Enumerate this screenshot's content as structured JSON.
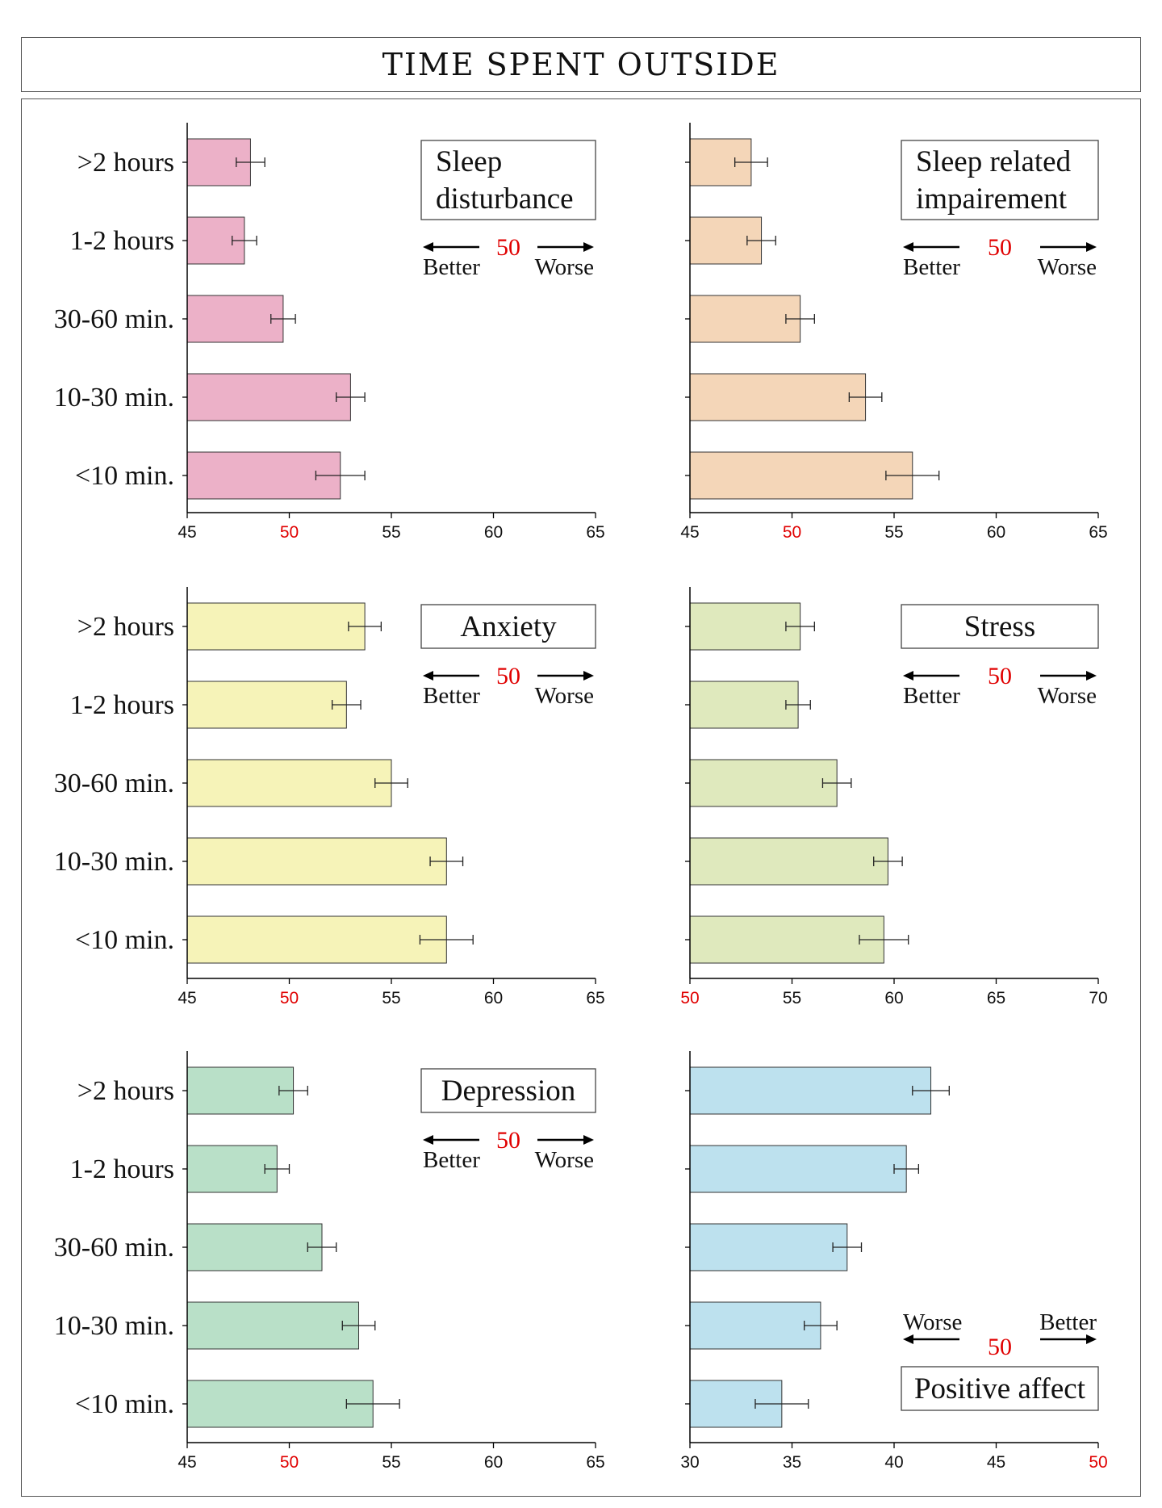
{
  "page_title": "TIME SPENT OUTSIDE",
  "colors": {
    "reference": "#e00000",
    "axis": "#000000"
  },
  "chart_data": [
    {
      "type": "bar",
      "orientation": "horizontal",
      "title": [
        "Sleep",
        "disturbance"
      ],
      "categories": [
        ">2 hours",
        "1-2 hours",
        "30-60 min.",
        "10-30 min.",
        "<10 min."
      ],
      "values": [
        48.1,
        47.8,
        49.7,
        53.0,
        52.5
      ],
      "errors": [
        0.7,
        0.6,
        0.6,
        0.7,
        1.2
      ],
      "xlim": [
        45,
        65
      ],
      "xticks": [
        "45",
        "50",
        "55",
        "60",
        "65"
      ],
      "reference": "50",
      "direction": {
        "left": "Better",
        "right": "Worse",
        "center": "50",
        "position": "top"
      },
      "color": "#ecb1c8",
      "show_categories": true
    },
    {
      "type": "bar",
      "orientation": "horizontal",
      "title": [
        "Sleep related",
        "impairement"
      ],
      "categories": [
        ">2 hours",
        "1-2 hours",
        "30-60 min.",
        "10-30 min.",
        "<10 min."
      ],
      "values": [
        48.0,
        48.5,
        50.4,
        53.6,
        55.9
      ],
      "errors": [
        0.8,
        0.7,
        0.7,
        0.8,
        1.3
      ],
      "xlim": [
        45,
        65
      ],
      "xticks": [
        "45",
        "50",
        "55",
        "60",
        "65"
      ],
      "reference": "50",
      "direction": {
        "left": "Better",
        "right": "Worse",
        "center": "50",
        "position": "top"
      },
      "color": "#f4d6b8",
      "show_categories": false
    },
    {
      "type": "bar",
      "orientation": "horizontal",
      "title": [
        "Anxiety"
      ],
      "categories": [
        ">2 hours",
        "1-2 hours",
        "30-60 min.",
        "10-30 min.",
        "<10 min."
      ],
      "values": [
        53.7,
        52.8,
        55.0,
        57.7,
        57.7
      ],
      "errors": [
        0.8,
        0.7,
        0.8,
        0.8,
        1.3
      ],
      "xlim": [
        45,
        65
      ],
      "xticks": [
        "45",
        "50",
        "55",
        "60",
        "65"
      ],
      "reference": "50",
      "direction": {
        "left": "Better",
        "right": "Worse",
        "center": "50",
        "position": "top"
      },
      "color": "#f6f3b8",
      "show_categories": true
    },
    {
      "type": "bar",
      "orientation": "horizontal",
      "title": [
        "Stress"
      ],
      "categories": [
        ">2 hours",
        "1-2 hours",
        "30-60 min.",
        "10-30 min.",
        "<10 min."
      ],
      "values": [
        55.4,
        55.3,
        57.2,
        59.7,
        59.5
      ],
      "errors": [
        0.7,
        0.6,
        0.7,
        0.7,
        1.2
      ],
      "xlim": [
        50,
        70
      ],
      "xticks": [
        "50",
        "55",
        "60",
        "65",
        "70"
      ],
      "reference": "50",
      "direction": {
        "left": "Better",
        "right": "Worse",
        "center": "50",
        "position": "top"
      },
      "color": "#dfe9bd",
      "show_categories": false
    },
    {
      "type": "bar",
      "orientation": "horizontal",
      "title": [
        "Depression"
      ],
      "categories": [
        ">2 hours",
        "1-2 hours",
        "30-60 min.",
        "10-30 min.",
        "<10 min."
      ],
      "values": [
        50.2,
        49.4,
        51.6,
        53.4,
        54.1
      ],
      "errors": [
        0.7,
        0.6,
        0.7,
        0.8,
        1.3
      ],
      "xlim": [
        45,
        65
      ],
      "xticks": [
        "45",
        "50",
        "55",
        "60",
        "65"
      ],
      "reference": "50",
      "direction": {
        "left": "Better",
        "right": "Worse",
        "center": "50",
        "position": "top"
      },
      "color": "#b9e0c8",
      "show_categories": true
    },
    {
      "type": "bar",
      "orientation": "horizontal",
      "title": [
        "Positive affect"
      ],
      "categories": [
        ">2 hours",
        "1-2 hours",
        "30-60 min.",
        "10-30 min.",
        "<10 min."
      ],
      "values": [
        41.8,
        40.6,
        37.7,
        36.4,
        34.5
      ],
      "errors": [
        0.9,
        0.6,
        0.7,
        0.8,
        1.3
      ],
      "xlim": [
        30,
        50
      ],
      "xticks": [
        "30",
        "35",
        "40",
        "45",
        "50"
      ],
      "reference": "50",
      "direction": {
        "left": "Worse",
        "right": "Better",
        "center": "50",
        "position": "bottom"
      },
      "color": "#bde1ee",
      "show_categories": false
    }
  ]
}
